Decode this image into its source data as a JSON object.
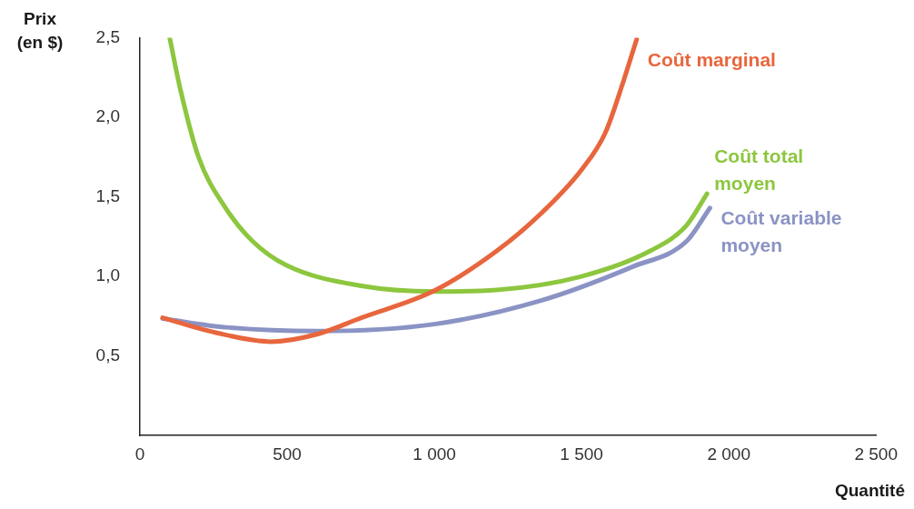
{
  "chart_data": {
    "type": "line",
    "xlabel": "Quantité",
    "ylabel": "Prix\n(en $)",
    "xlim": [
      0,
      2500
    ],
    "xticks": [
      0,
      500,
      {
        "value": 1000,
        "label": "1 000"
      },
      {
        "value": 1500,
        "label": "1 500"
      },
      {
        "value": 2000,
        "label": "2 000"
      },
      {
        "value": 2500,
        "label": "2 500"
      }
    ],
    "ylim": [
      0,
      2.5
    ],
    "yticks": [
      {
        "value": 0.5,
        "label": "0,5"
      },
      {
        "value": 1,
        "label": "1,0"
      },
      {
        "value": 1.5,
        "label": "1,5"
      },
      {
        "value": 2,
        "label": "2,0"
      },
      {
        "value": 2.5,
        "label": "2,5"
      }
    ],
    "grid": false,
    "legend": false,
    "marker": "none",
    "series": [
      {
        "name": "Coût marginal",
        "color": "#e8663d",
        "x": [
          77,
          261,
          445,
          598,
          752,
          1000,
          1212,
          1365,
          1500,
          1580,
          1641,
          1687
        ],
        "values": [
          0.74,
          0.645,
          0.59,
          0.635,
          0.74,
          0.91,
          1.16,
          1.4,
          1.67,
          1.9,
          2.22,
          2.49
        ]
      },
      {
        "name": "Coût total moyen",
        "color": "#8dc63f",
        "x": [
          101,
          138,
          199,
          291,
          383,
          497,
          752,
          1000,
          1212,
          1500,
          1733,
          1856,
          1926
        ],
        "values": [
          2.5,
          2.17,
          1.75,
          1.43,
          1.22,
          1.07,
          0.94,
          0.905,
          0.915,
          1.0,
          1.16,
          1.32,
          1.52
        ]
      },
      {
        "name": "Coût variable moyen",
        "color": "#8a93c4",
        "x": [
          77,
          291,
          598,
          1000,
          1365,
          1672,
          1856,
          1936
        ],
        "values": [
          0.735,
          0.68,
          0.656,
          0.7,
          0.85,
          1.06,
          1.22,
          1.43
        ]
      }
    ]
  }
}
